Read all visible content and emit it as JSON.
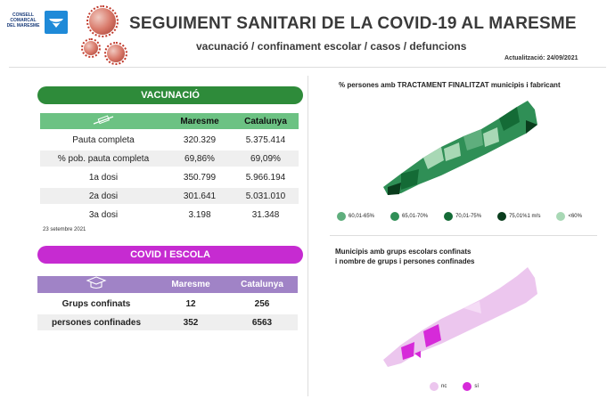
{
  "header": {
    "logo_text": "CONSELL COMARCAL DEL MARESME",
    "title": "SEGUIMENT SANITARI DE LA COVID-19 AL MARESME",
    "subtitle": "vacunació / confinament escolar / casos / defuncions",
    "update": "Actualització: 24/09/2021"
  },
  "vacunacio": {
    "title": "VACUNACIÓ",
    "icon": "syringe-icon",
    "columns": [
      "Maresme",
      "Catalunya"
    ],
    "rows": [
      {
        "label": "Pauta completa",
        "maresme": "320.329",
        "catalunya": "5.375.414"
      },
      {
        "label": "% pob. pauta completa",
        "maresme": "69,86%",
        "catalunya": "69,09%"
      },
      {
        "label": "1a dosi",
        "maresme": "350.799",
        "catalunya": "5.966.194"
      },
      {
        "label": "2a dosi",
        "maresme": "301.641",
        "catalunya": "5.031.010"
      },
      {
        "label": "3a dosi",
        "maresme": "3.198",
        "catalunya": "31.348"
      }
    ],
    "note": "23 setembre 2021"
  },
  "covid_escola": {
    "title": "COVID I ESCOLA",
    "icon": "graduation-cap-icon",
    "columns": [
      "Maresme",
      "Catalunya"
    ],
    "rows": [
      {
        "label": "Grups confinats",
        "maresme": "12",
        "catalunya": "256"
      },
      {
        "label": "persones confinades",
        "maresme": "352",
        "catalunya": "6563"
      }
    ]
  },
  "map_vaccination": {
    "title": "% persones amb TRACTAMENT FINALITZAT municipis i  fabricant",
    "legend": [
      {
        "label": "60,01-65%",
        "color": "#5fae7d"
      },
      {
        "label": "65,01-70%",
        "color": "#2f8f56"
      },
      {
        "label": "70,01-75%",
        "color": "#146b36"
      },
      {
        "label": "75,01%1 mŕs",
        "color": "#0a3d1d"
      },
      {
        "label": "<60%",
        "color": "#a8d8b5"
      }
    ]
  },
  "map_schools": {
    "title_line1": "Municipis amb grups escolars confinats",
    "title_line2": "i nombre de grups i persones confinades",
    "legend": [
      {
        "label": "nc",
        "color": "#ecc6ee"
      },
      {
        "label": "sí",
        "color": "#d62ad9"
      }
    ]
  }
}
